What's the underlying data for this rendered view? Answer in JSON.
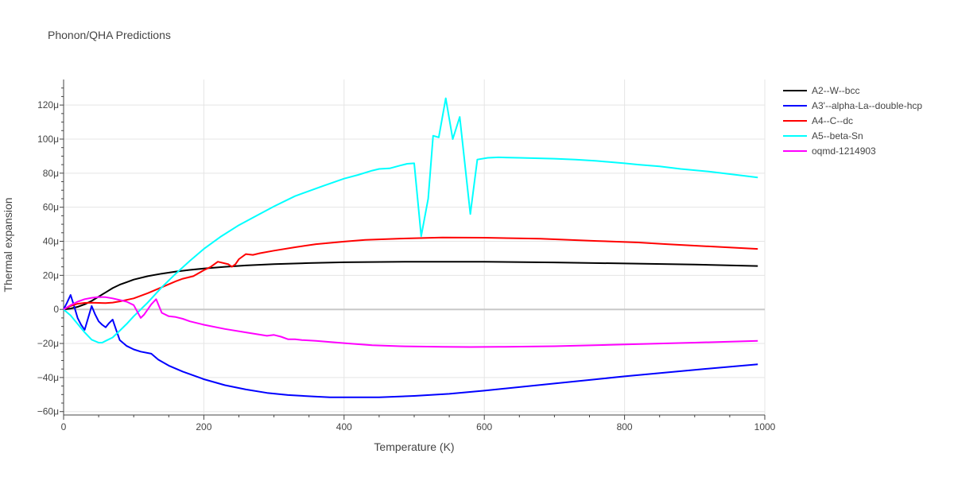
{
  "title": "Phonon/QHA Predictions",
  "chart_data": {
    "type": "line",
    "title": "Phonon/QHA Predictions",
    "xlabel": "Temperature (K)",
    "ylabel": "Thermal expansion",
    "xlim": [
      0,
      1000
    ],
    "ylim": [
      -62,
      135
    ],
    "x_ticks": [
      0,
      200,
      400,
      600,
      800,
      1000
    ],
    "x_tick_labels": [
      "0",
      "200",
      "400",
      "600",
      "800",
      "1000"
    ],
    "y_ticks": [
      -60,
      -40,
      -20,
      0,
      20,
      40,
      60,
      80,
      100,
      120
    ],
    "y_tick_labels": [
      "−60μ",
      "−40μ",
      "−20μ",
      "0",
      "20μ",
      "40μ",
      "60μ",
      "80μ",
      "100μ",
      "120μ"
    ],
    "grid": true,
    "legend_position": "right",
    "series": [
      {
        "name": "A2--W--bcc",
        "color": "#000000",
        "points": [
          [
            0,
            0
          ],
          [
            10,
            0.5
          ],
          [
            20,
            1.5
          ],
          [
            30,
            3
          ],
          [
            40,
            5
          ],
          [
            50,
            7.5
          ],
          [
            60,
            10
          ],
          [
            70,
            12.5
          ],
          [
            80,
            14.5
          ],
          [
            90,
            16
          ],
          [
            100,
            17.5
          ],
          [
            120,
            19.5
          ],
          [
            140,
            21
          ],
          [
            160,
            22.2
          ],
          [
            180,
            23.2
          ],
          [
            200,
            24
          ],
          [
            230,
            25
          ],
          [
            260,
            25.8
          ],
          [
            300,
            26.6
          ],
          [
            350,
            27.2
          ],
          [
            400,
            27.7
          ],
          [
            500,
            28
          ],
          [
            600,
            28
          ],
          [
            700,
            27.6
          ],
          [
            800,
            27
          ],
          [
            900,
            26.3
          ],
          [
            990,
            25.5
          ]
        ]
      },
      {
        "name": "A3'--alpha-La--double-hcp",
        "color": "#0000ff",
        "points": [
          [
            0,
            0
          ],
          [
            5,
            4
          ],
          [
            10,
            8.5
          ],
          [
            15,
            2
          ],
          [
            20,
            -5
          ],
          [
            25,
            -9
          ],
          [
            30,
            -12
          ],
          [
            35,
            -5
          ],
          [
            40,
            2
          ],
          [
            45,
            -3
          ],
          [
            50,
            -7
          ],
          [
            55,
            -9
          ],
          [
            60,
            -10.5
          ],
          [
            65,
            -8
          ],
          [
            70,
            -6
          ],
          [
            75,
            -12
          ],
          [
            80,
            -18
          ],
          [
            90,
            -21.5
          ],
          [
            100,
            -23.5
          ],
          [
            110,
            -24.8
          ],
          [
            125,
            -26
          ],
          [
            135,
            -29.5
          ],
          [
            150,
            -33
          ],
          [
            170,
            -36.5
          ],
          [
            200,
            -41
          ],
          [
            230,
            -44.5
          ],
          [
            260,
            -47
          ],
          [
            290,
            -49
          ],
          [
            320,
            -50.3
          ],
          [
            360,
            -51.2
          ],
          [
            380,
            -51.6
          ],
          [
            420,
            -51.6
          ],
          [
            450,
            -51.6
          ],
          [
            500,
            -50.8
          ],
          [
            550,
            -49.6
          ],
          [
            600,
            -47.7
          ],
          [
            700,
            -43.5
          ],
          [
            800,
            -39.3
          ],
          [
            900,
            -35.5
          ],
          [
            990,
            -32.2
          ]
        ]
      },
      {
        "name": "A4--C--dc",
        "color": "#ff0000",
        "points": [
          [
            0,
            0
          ],
          [
            10,
            2
          ],
          [
            20,
            3.3
          ],
          [
            30,
            3.8
          ],
          [
            40,
            3.9
          ],
          [
            50,
            3.8
          ],
          [
            60,
            3.7
          ],
          [
            70,
            4
          ],
          [
            80,
            4.7
          ],
          [
            90,
            5.6
          ],
          [
            100,
            6.5
          ],
          [
            120,
            9.5
          ],
          [
            140,
            13
          ],
          [
            160,
            16.5
          ],
          [
            170,
            18
          ],
          [
            185,
            19.5
          ],
          [
            200,
            23
          ],
          [
            210,
            25
          ],
          [
            220,
            28
          ],
          [
            235,
            26.5
          ],
          [
            240,
            25
          ],
          [
            245,
            26.5
          ],
          [
            250,
            29.5
          ],
          [
            260,
            32.5
          ],
          [
            270,
            32
          ],
          [
            280,
            33
          ],
          [
            300,
            34.5
          ],
          [
            330,
            36.5
          ],
          [
            360,
            38.3
          ],
          [
            400,
            39.8
          ],
          [
            430,
            40.8
          ],
          [
            480,
            41.6
          ],
          [
            540,
            42.2
          ],
          [
            600,
            42.1
          ],
          [
            680,
            41.5
          ],
          [
            760,
            40.2
          ],
          [
            820,
            39.3
          ],
          [
            860,
            38.3
          ],
          [
            920,
            37
          ],
          [
            990,
            35.5
          ]
        ]
      },
      {
        "name": "A5--beta-Sn",
        "color": "#00ffff",
        "points": [
          [
            0,
            0
          ],
          [
            10,
            -3.5
          ],
          [
            20,
            -8.5
          ],
          [
            30,
            -13.5
          ],
          [
            40,
            -17.8
          ],
          [
            50,
            -19.5
          ],
          [
            55,
            -19.5
          ],
          [
            60,
            -18.5
          ],
          [
            70,
            -16.5
          ],
          [
            80,
            -12.5
          ],
          [
            90,
            -8.5
          ],
          [
            100,
            -4
          ],
          [
            120,
            4
          ],
          [
            140,
            13
          ],
          [
            160,
            21
          ],
          [
            180,
            28.5
          ],
          [
            200,
            35.5
          ],
          [
            225,
            43
          ],
          [
            250,
            49.5
          ],
          [
            275,
            55
          ],
          [
            300,
            60.5
          ],
          [
            330,
            66.5
          ],
          [
            370,
            72.5
          ],
          [
            400,
            76.8
          ],
          [
            420,
            79
          ],
          [
            440,
            81.5
          ],
          [
            450,
            82.5
          ],
          [
            465,
            82.8
          ],
          [
            480,
            84.5
          ],
          [
            490,
            85.5
          ],
          [
            500,
            85.8
          ],
          [
            510,
            43
          ],
          [
            520,
            65
          ],
          [
            527,
            102
          ],
          [
            535,
            101
          ],
          [
            545,
            124
          ],
          [
            555,
            100
          ],
          [
            565,
            113
          ],
          [
            580,
            56
          ],
          [
            590,
            88
          ],
          [
            605,
            89
          ],
          [
            620,
            89.3
          ],
          [
            650,
            89
          ],
          [
            700,
            88.5
          ],
          [
            730,
            88
          ],
          [
            760,
            87.2
          ],
          [
            780,
            86.5
          ],
          [
            800,
            85.8
          ],
          [
            820,
            85
          ],
          [
            850,
            84
          ],
          [
            880,
            82.5
          ],
          [
            920,
            81
          ],
          [
            960,
            79
          ],
          [
            990,
            77.5
          ]
        ]
      },
      {
        "name": "oqmd-1214903",
        "color": "#ff00ff",
        "points": [
          [
            0,
            0
          ],
          [
            10,
            2.5
          ],
          [
            20,
            4.5
          ],
          [
            30,
            6
          ],
          [
            40,
            6.8
          ],
          [
            50,
            7.3
          ],
          [
            60,
            7.2
          ],
          [
            70,
            6.5
          ],
          [
            80,
            5.5
          ],
          [
            90,
            4.5
          ],
          [
            100,
            2.5
          ],
          [
            110,
            -5
          ],
          [
            115,
            -3
          ],
          [
            125,
            3
          ],
          [
            132,
            6
          ],
          [
            140,
            -2
          ],
          [
            150,
            -4
          ],
          [
            160,
            -4.5
          ],
          [
            170,
            -5.5
          ],
          [
            180,
            -7
          ],
          [
            200,
            -9
          ],
          [
            230,
            -11.5
          ],
          [
            260,
            -13.5
          ],
          [
            290,
            -15.5
          ],
          [
            300,
            -15
          ],
          [
            310,
            -16
          ],
          [
            320,
            -17.5
          ],
          [
            330,
            -17.5
          ],
          [
            340,
            -18
          ],
          [
            360,
            -18.5
          ],
          [
            400,
            -19.8
          ],
          [
            440,
            -21
          ],
          [
            480,
            -21.6
          ],
          [
            540,
            -22
          ],
          [
            580,
            -22.1
          ],
          [
            620,
            -22
          ],
          [
            700,
            -21.6
          ],
          [
            800,
            -20.6
          ],
          [
            900,
            -19.5
          ],
          [
            990,
            -18.5
          ]
        ]
      }
    ]
  }
}
